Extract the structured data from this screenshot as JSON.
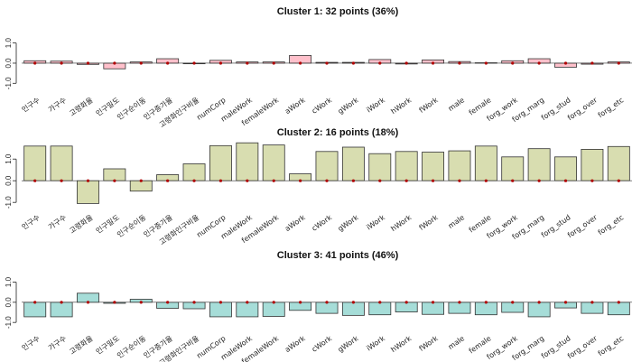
{
  "chart_data": [
    {
      "type": "bar",
      "title": "Cluster 1: 32 points (36%)",
      "fill": "#ffc0cb",
      "ylim": [
        -1.3,
        1.7
      ],
      "yticks": [
        "-1.0",
        "0.0",
        "1.0"
      ],
      "categories": [
        "인구수",
        "가구수",
        "고령화율",
        "인구밀도",
        "인구순이동",
        "인구증가율",
        "고령화인구비율",
        "numCorp",
        "maleWork",
        "femaleWork",
        "aWork",
        "cWork",
        "gWork",
        "iWork",
        "hWork",
        "fWork",
        "male",
        "female",
        "forg_work",
        "forg_marg",
        "forg_stud",
        "forg_over",
        "forg_etc"
      ],
      "values": [
        0.12,
        0.1,
        -0.06,
        -0.28,
        0.06,
        0.22,
        -0.03,
        0.14,
        0.06,
        0.06,
        0.38,
        0.04,
        0.04,
        0.18,
        -0.04,
        0.16,
        0.08,
        0.02,
        0.12,
        0.22,
        -0.2,
        -0.05,
        0.06
      ]
    },
    {
      "type": "bar",
      "title": "Cluster 2: 16 points (18%)",
      "fill": "#d8ddb0",
      "ylim": [
        -1.2,
        1.8
      ],
      "yticks": [
        "-1.0",
        "0.0",
        "1.0"
      ],
      "categories": [
        "인구수",
        "가구수",
        "고령화율",
        "인구밀도",
        "인구순이동",
        "인구증가율",
        "고령화인구비율",
        "numCorp",
        "maleWork",
        "femaleWork",
        "aWork",
        "cWork",
        "gWork",
        "iWork",
        "hWork",
        "fWork",
        "male",
        "female",
        "forg_work",
        "forg_marg",
        "forg_stud",
        "forg_over",
        "forg_etc"
      ],
      "values": [
        1.6,
        1.6,
        -1.05,
        0.55,
        -0.48,
        0.28,
        0.78,
        1.62,
        1.75,
        1.65,
        0.32,
        1.35,
        1.55,
        1.25,
        1.35,
        1.32,
        1.38,
        1.6,
        1.1,
        1.48,
        1.1,
        1.45,
        1.58
      ]
    },
    {
      "type": "bar",
      "title": "Cluster 3: 41 points (46%)",
      "fill": "#a6ddd8",
      "ylim": [
        -1.35,
        1.65
      ],
      "yticks": [
        "-1.0",
        "0.0",
        "1.0"
      ],
      "categories": [
        "인구수",
        "가구수",
        "고령화율",
        "인구밀도",
        "인구순이동",
        "인구증가율",
        "고령화인구비율",
        "numCorp",
        "maleWork",
        "femaleWork",
        "aWork",
        "cWork",
        "gWork",
        "iWork",
        "hWork",
        "fWork",
        "male",
        "female",
        "forg_work",
        "forg_marg",
        "forg_stud",
        "forg_over",
        "forg_etc"
      ],
      "values": [
        -0.72,
        -0.72,
        0.45,
        -0.05,
        0.15,
        -0.3,
        -0.32,
        -0.72,
        -0.72,
        -0.7,
        -0.4,
        -0.55,
        -0.65,
        -0.62,
        -0.48,
        -0.6,
        -0.55,
        -0.62,
        -0.5,
        -0.72,
        -0.28,
        -0.55,
        -0.62
      ]
    }
  ]
}
